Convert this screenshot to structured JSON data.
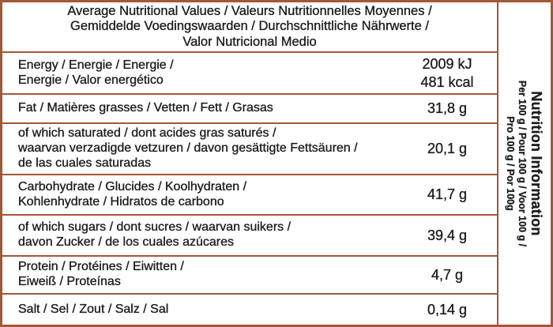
{
  "colors": {
    "border": "#A25835",
    "text": "#1D1D1B",
    "background": "#FFFFFF"
  },
  "header": {
    "lines": [
      "Average Nutritional Values / Valeurs Nutritionnelles Moyennes /",
      "Gemiddelde Voedingswaarden / Durchschnittliche Nährwerte /",
      "Valor Nutricional Medio"
    ]
  },
  "rows": [
    {
      "label": [
        "Energy / Energie / Energie /",
        "Energie / Valor energético"
      ],
      "value": [
        "2009 kJ",
        "481 kcal"
      ]
    },
    {
      "label": [
        "Fat / Matières grasses / Vetten / Fett / Grasas"
      ],
      "value": [
        "31,8 g"
      ]
    },
    {
      "label": [
        "of which saturated / dont acides gras saturés /",
        "waarvan verzadigde vetzuren / davon gesättigte Fettsäuren /",
        "de las cuales saturadas"
      ],
      "value": [
        "20,1 g"
      ]
    },
    {
      "label": [
        "Carbohydrate / Glucides / Koolhydraten /",
        "Kohlenhydrate / Hidratos de carbono"
      ],
      "value": [
        "41,7 g"
      ]
    },
    {
      "label": [
        "of which sugars / dont sucres / waarvan suikers /",
        "davon Zucker / de los cuales azúcares"
      ],
      "value": [
        "39,4 g"
      ]
    },
    {
      "label": [
        "Protein / Protéines / Eiwitten /",
        "Eiweiß / Proteínas"
      ],
      "value": [
        "4,7 g"
      ]
    },
    {
      "label": [
        "Salt / Sel / Zout / Salz / Sal"
      ],
      "value": [
        "0,14 g"
      ]
    }
  ],
  "sidebar": {
    "title": "Nutrition Information",
    "subtitle_lines": [
      "Per 100 g / Pour 100 g / Voor 100 g /",
      "Pro 100 g / Por 100g"
    ]
  }
}
